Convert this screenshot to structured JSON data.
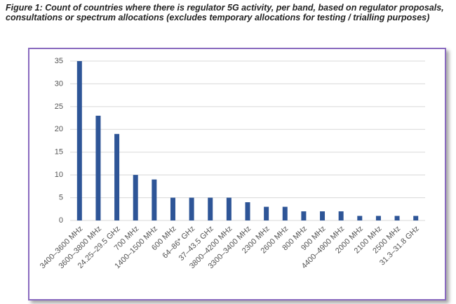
{
  "chart_data": {
    "type": "bar",
    "title": "Figure 1: Count of countries where there is regulator 5G activity, per band, based on regulator proposals, consultations or spectrum allocations (excludes temporary allocations for testing / trialling purposes)",
    "categories": [
      "3400–3600 MHz",
      "3600–3800 MHz",
      "24.25–29.5 GHz",
      "700 MHz",
      "1400–1500 MHz",
      "600 MHz",
      "64–86* GHz",
      "37–43.5 GHz",
      "3800–4200 MHz",
      "3300–3400 MHz",
      "2300 MHz",
      "2600 MHz",
      "800 MHz",
      "900 MHz",
      "4400–4900 MHz",
      "2000 MHz",
      "2100 MHz",
      "2500 MHz",
      "31.3–31.8 GHz"
    ],
    "values": [
      35,
      23,
      19,
      10,
      9,
      5,
      5,
      5,
      5,
      4,
      3,
      3,
      2,
      2,
      2,
      1,
      1,
      1,
      1
    ],
    "color": "#2e5597",
    "ylim": [
      0,
      35
    ],
    "yticks": [
      0,
      5,
      10,
      15,
      20,
      25,
      30,
      35
    ],
    "grid": true
  }
}
